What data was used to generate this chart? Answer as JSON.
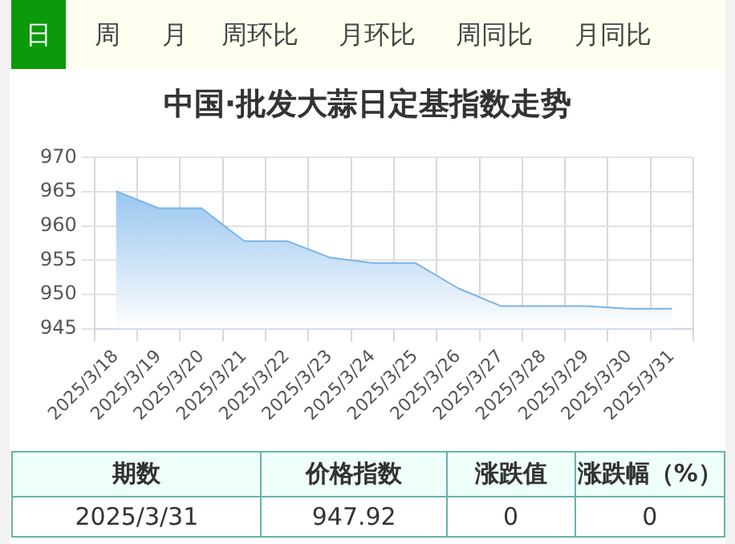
{
  "chart_data": {
    "type": "area",
    "title": "中国·批发大蒜日定基指数走势",
    "categories": [
      "2025/3/18",
      "2025/3/19",
      "2025/3/20",
      "2025/3/21",
      "2025/3/22",
      "2025/3/23",
      "2025/3/24",
      "2025/3/25",
      "2025/3/26",
      "2025/3/27",
      "2025/3/28",
      "2025/3/29",
      "2025/3/30",
      "2025/3/31"
    ],
    "series": [
      {
        "color": "#7ab4ea",
        "values": [
          965.1,
          962.6,
          962.6,
          957.8,
          957.8,
          955.4,
          954.6,
          954.6,
          950.9,
          948.3,
          948.3,
          948.3,
          947.9,
          947.9
        ]
      }
    ],
    "ylim": [
      945,
      970
    ],
    "yticks": [
      945,
      950,
      955,
      960,
      965,
      970
    ],
    "grid": true,
    "legend": false,
    "marker": "none",
    "annotations": [
      "日",
      "周",
      "月",
      "周环比",
      "月环比",
      "周同比",
      "月同比",
      "期数",
      "价格指数",
      "涨跌值",
      "涨跌幅（%）",
      "2025/3/31",
      "947.92",
      "0",
      "0"
    ]
  }
}
